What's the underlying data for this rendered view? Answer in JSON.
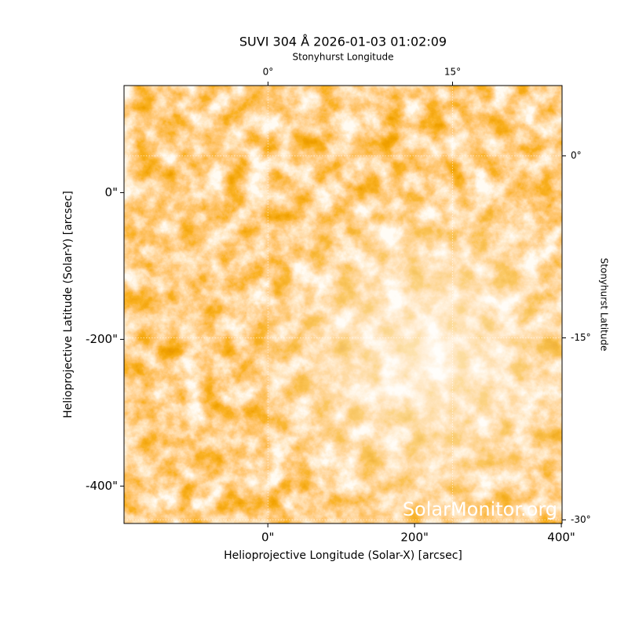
{
  "chart_data": {
    "type": "image",
    "title": "SUVI 304 Å 2026-01-03 01:02:09",
    "xlabel": "Helioprojective Longitude (Solar-X) [arcsec]",
    "ylabel": "Helioprojective Latitude (Solar-Y) [arcsec]",
    "x2label": "Stonyhurst Longitude",
    "y2label": "Stonyhurst Latitude",
    "watermark": "SolarMonitor.org",
    "xlim": [
      -196,
      401
    ],
    "ylim": [
      -451,
      146
    ],
    "xticks": [
      {
        "value": 0,
        "label": "0\""
      },
      {
        "value": 200,
        "label": "200\""
      },
      {
        "value": 400,
        "label": "400\""
      }
    ],
    "yticks": [
      {
        "value": 0,
        "label": "0\""
      },
      {
        "value": -200,
        "label": "-200\""
      },
      {
        "value": -400,
        "label": "-400\""
      }
    ],
    "x2lim": [
      -11.7,
      23.9
    ],
    "y2lim": [
      -30.3,
      5.8
    ],
    "x2ticks": [
      {
        "value": 0,
        "label": "0°"
      },
      {
        "value": 15,
        "label": "15°"
      }
    ],
    "y2ticks": [
      {
        "value": 0,
        "label": "0°"
      },
      {
        "value": -15,
        "label": "-15°"
      },
      {
        "value": -30,
        "label": "-30°"
      }
    ],
    "grid": true
  }
}
